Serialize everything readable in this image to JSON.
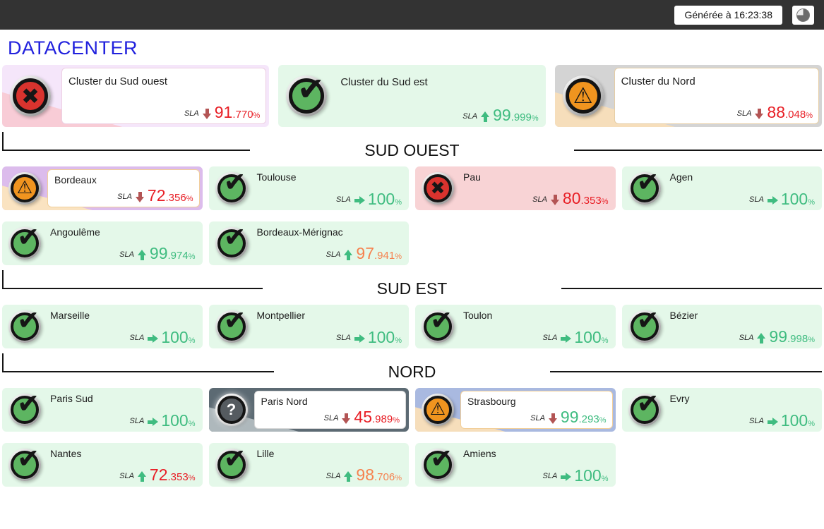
{
  "topbar": {
    "generated_label": "Générée à 16:23:38",
    "theme_icon": "contrast-pie-icon"
  },
  "page_title": "DATACENTER",
  "labels": {
    "sla": "SLA"
  },
  "glyphs": {
    "check": "✔",
    "cross": "✖",
    "warning": "⚠",
    "question": "?"
  },
  "colors": {
    "topbar_bg": "#333333",
    "title_blue": "#2121dd",
    "ok_card_bg": "#e4f8e9",
    "critical_card_bg": "#f8d3d5",
    "value_green": "#3fbc80",
    "value_red": "#e81e25",
    "value_orange": "#f6824f",
    "arrow_down_red": "#b35454",
    "icon_green": "#5db561",
    "icon_red": "#d9332e",
    "icon_orange": "#f0941f",
    "icon_gray": "#555b60"
  },
  "clusters": [
    {
      "name": "Cluster du Sud ouest",
      "status": "critical",
      "icon": "error-icon",
      "sla_trend": "down",
      "sla_int": "91",
      "sla_frac": ".770",
      "unit": "%"
    },
    {
      "name": "Cluster du Sud est",
      "status": "ok",
      "icon": "check-icon",
      "sla_trend": "up",
      "sla_int": "99",
      "sla_frac": ".999",
      "unit": "%"
    },
    {
      "name": "Cluster du Nord",
      "status": "warning",
      "icon": "warning-icon",
      "sla_trend": "down",
      "sla_int": "88",
      "sla_frac": ".048",
      "unit": "%"
    }
  ],
  "sections": [
    {
      "title": "SUD OUEST",
      "sites": [
        {
          "name": "Bordeaux",
          "status": "warning",
          "icon": "warning-icon",
          "sla_trend": "down",
          "sla_int": "72",
          "sla_frac": ".356",
          "unit": "%"
        },
        {
          "name": "Toulouse",
          "status": "ok",
          "icon": "check-icon",
          "sla_trend": "steady",
          "sla_int": "100",
          "sla_frac": "",
          "unit": "%"
        },
        {
          "name": "Pau",
          "status": "critical",
          "icon": "error-icon",
          "sla_trend": "down",
          "sla_int": "80",
          "sla_frac": ".353",
          "unit": "%"
        },
        {
          "name": "Agen",
          "status": "ok",
          "icon": "check-icon",
          "sla_trend": "steady",
          "sla_int": "100",
          "sla_frac": "",
          "unit": "%"
        },
        {
          "name": "Angoulême",
          "status": "ok",
          "icon": "check-icon",
          "sla_trend": "up",
          "sla_int": "99",
          "sla_frac": ".974",
          "unit": "%"
        },
        {
          "name": "Bordeaux-Mérignac",
          "status": "ok",
          "icon": "check-icon",
          "sla_trend": "up",
          "sla_int": "97",
          "sla_frac": ".941",
          "unit": "%"
        }
      ]
    },
    {
      "title": "SUD EST",
      "sites": [
        {
          "name": "Marseille",
          "status": "ok",
          "icon": "check-icon",
          "sla_trend": "steady",
          "sla_int": "100",
          "sla_frac": "",
          "unit": "%"
        },
        {
          "name": "Montpellier",
          "status": "ok",
          "icon": "check-icon",
          "sla_trend": "steady",
          "sla_int": "100",
          "sla_frac": "",
          "unit": "%"
        },
        {
          "name": "Toulon",
          "status": "ok",
          "icon": "check-icon",
          "sla_trend": "steady",
          "sla_int": "100",
          "sla_frac": "",
          "unit": "%"
        },
        {
          "name": "Bézier",
          "status": "ok",
          "icon": "check-icon",
          "sla_trend": "up",
          "sla_int": "99",
          "sla_frac": ".998",
          "unit": "%"
        }
      ]
    },
    {
      "title": "NORD",
      "sites": [
        {
          "name": "Paris Sud",
          "status": "ok",
          "icon": "check-icon",
          "sla_trend": "steady",
          "sla_int": "100",
          "sla_frac": "",
          "unit": "%"
        },
        {
          "name": "Paris Nord",
          "status": "unknown",
          "icon": "question-icon",
          "sla_trend": "down",
          "sla_int": "45",
          "sla_frac": ".989",
          "unit": "%"
        },
        {
          "name": "Strasbourg",
          "status": "warning",
          "icon": "warning-icon",
          "sla_trend": "down",
          "sla_int": "99",
          "sla_frac": ".293",
          "unit": "%"
        },
        {
          "name": "Evry",
          "status": "ok",
          "icon": "check-icon",
          "sla_trend": "steady",
          "sla_int": "100",
          "sla_frac": "",
          "unit": "%"
        },
        {
          "name": "Nantes",
          "status": "ok",
          "icon": "check-icon",
          "sla_trend": "up",
          "sla_int": "72",
          "sla_frac": ".353",
          "unit": "%"
        },
        {
          "name": "Lille",
          "status": "ok",
          "icon": "check-icon",
          "sla_trend": "up",
          "sla_int": "98",
          "sla_frac": ".706",
          "unit": "%"
        },
        {
          "name": "Amiens",
          "status": "ok",
          "icon": "check-icon",
          "sla_trend": "steady",
          "sla_int": "100",
          "sla_frac": "",
          "unit": "%"
        }
      ]
    }
  ]
}
